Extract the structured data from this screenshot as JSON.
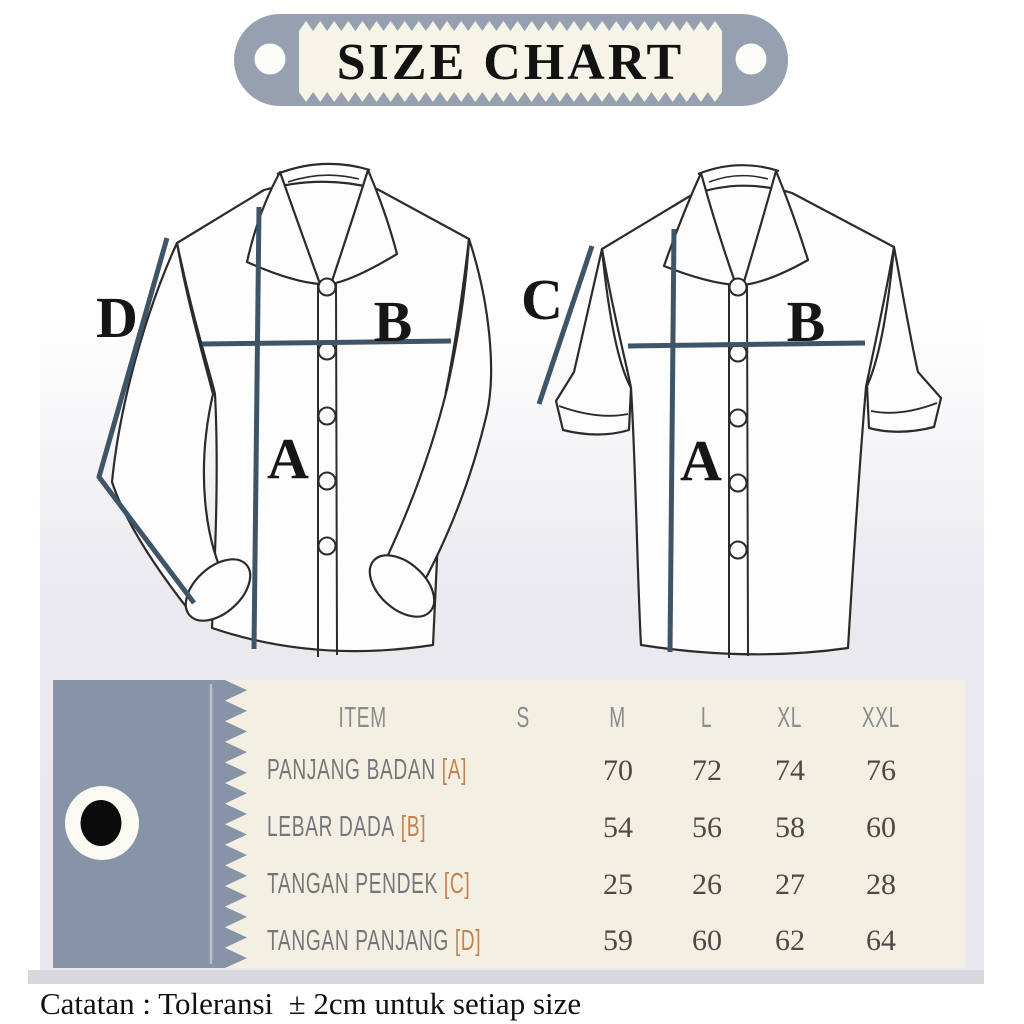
{
  "header": {
    "title": "SIZE CHART"
  },
  "measure_labels": {
    "a": "A",
    "b": "B",
    "c": "C",
    "d": "D"
  },
  "table": {
    "columns": [
      "ITEM",
      "S",
      "M",
      "L",
      "XL",
      "XXL"
    ],
    "rows": [
      {
        "label": "PANJANG BADAN",
        "ref": "[A]",
        "values": [
          "",
          "70",
          "72",
          "74",
          "76"
        ]
      },
      {
        "label": "LEBAR DADA",
        "ref": "[B]",
        "values": [
          "",
          "54",
          "56",
          "58",
          "60"
        ]
      },
      {
        "label": "TANGAN PENDEK",
        "ref": "[C]",
        "values": [
          "",
          "25",
          "26",
          "27",
          "28"
        ]
      },
      {
        "label": "TANGAN PANJANG",
        "ref": "[D]",
        "values": [
          "",
          "59",
          "60",
          "62",
          "64"
        ]
      }
    ]
  },
  "note": "Catatan : Toleransi  ± 2cm untuk setiap size",
  "chart_data": {
    "type": "table",
    "title": "SIZE CHART",
    "columns": [
      "ITEM",
      "S",
      "M",
      "L",
      "XL",
      "XXL"
    ],
    "rows": [
      [
        "PANJANG BADAN [A]",
        "",
        "70",
        "72",
        "74",
        "76"
      ],
      [
        "LEBAR DADA [B]",
        "",
        "54",
        "56",
        "58",
        "60"
      ],
      [
        "TANGAN PENDEK [C]",
        "",
        "25",
        "26",
        "27",
        "28"
      ],
      [
        "TANGAN PANJANG [D]",
        "",
        "59",
        "60",
        "62",
        "64"
      ]
    ],
    "note": "Catatan : Toleransi  ± 2cm untuk setiap size"
  },
  "colors": {
    "title_tag_gray": "#97a0b0",
    "table_tag_gray": "#8793a6",
    "title_cream": "#f6f3e8",
    "table_cream": "#f3f0e3",
    "accent_orange": "#bf8450",
    "measure_line": "#3e5568",
    "panel_gray": "#e9e9ee"
  }
}
